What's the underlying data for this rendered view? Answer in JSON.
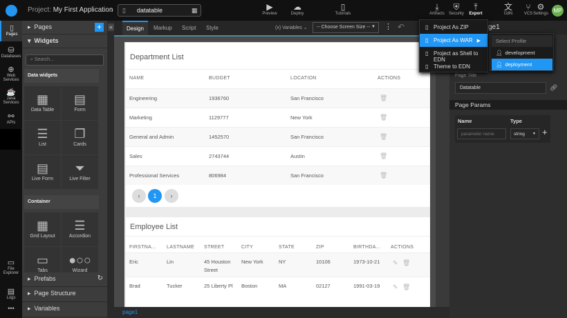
{
  "header": {
    "project_label": "Project:",
    "project_name": "My First Application",
    "page_name": "datatable",
    "tools": [
      {
        "label": "Preview",
        "icon": "play-icon"
      },
      {
        "label": "Deploy",
        "icon": "cloud-upload-icon"
      },
      {
        "label": "Tutorials",
        "icon": "book-icon"
      },
      {
        "label": "Artifacts",
        "icon": "download-icon"
      },
      {
        "label": "Security",
        "icon": "shield-icon"
      },
      {
        "label": "Export",
        "icon": "export-icon"
      },
      {
        "label": "I18N",
        "icon": "translate-icon"
      },
      {
        "label": "VCS",
        "icon": "git-icon"
      },
      {
        "label": "Settings",
        "icon": "gear-icon"
      }
    ],
    "avatar": "MP"
  },
  "rail": {
    "items": [
      "Pages",
      "Databases",
      "Web Services",
      "Java Services",
      "APIs"
    ],
    "bottom": [
      "File Explorer",
      "Logs"
    ],
    "more": "•••"
  },
  "left_panel": {
    "pages": "Pages",
    "widgets": "Widgets",
    "search_placeholder": "Search...",
    "groups": [
      {
        "label": "Data widgets",
        "tiles": [
          "Data Table",
          "Form",
          "List",
          "Cards",
          "Live Form",
          "Live Filter"
        ]
      },
      {
        "label": "Container",
        "tiles": [
          "Grid Layout",
          "Accordion",
          "Tabs",
          "Wizard"
        ]
      }
    ],
    "prefabs": "Prefabs",
    "page_structure": "Page Structure",
    "variables": "Variables"
  },
  "editor": {
    "tabs": [
      "Design",
      "Markup",
      "Script",
      "Style"
    ],
    "variables": "Variables",
    "screen_size": "-- Choose Screen Size --",
    "bottom_tab": "page1"
  },
  "department": {
    "title": "Department List",
    "columns": [
      "NAME",
      "BUDGET",
      "LOCATION",
      "ACTIONS"
    ],
    "rows": [
      [
        "Engineering",
        "1936760",
        "San Francisco"
      ],
      [
        "Marketing",
        "1129777",
        "New York"
      ],
      [
        "General and Admin",
        "1452570",
        "San Francisco"
      ],
      [
        "Sales",
        "2743744",
        "Austin"
      ],
      [
        "Professional Services",
        "806984",
        "San Francisco"
      ]
    ],
    "pagination": {
      "prev": "‹",
      "current": "1",
      "next": "›"
    }
  },
  "employee": {
    "title": "Employee List",
    "columns": [
      "FIRSTNA...",
      "LASTNAME",
      "STREET",
      "CITY",
      "STATE",
      "ZIP",
      "BIRTHDA...",
      "ACTIONS"
    ],
    "rows": [
      [
        "Eric",
        "Lin",
        "45 Houston Street",
        "New York",
        "NY",
        "10106",
        "1973-10-21"
      ],
      [
        "Brad",
        "Tucker",
        "25 Liberty Pl",
        "Boston",
        "MA",
        "02127",
        "1991-03-19"
      ]
    ]
  },
  "right_panel": {
    "title_partial": "ge1",
    "page_title_label": "Page Title",
    "page_title_value": "Datatable",
    "page_params": "Page Params",
    "param_cols": [
      "Name",
      "Type"
    ],
    "param_placeholder": "parameter name",
    "param_type": "string"
  },
  "export_menu": {
    "items": [
      "Project As ZIP",
      "Project As WAR",
      "Project as Shell to EDN",
      "Theme to EDN"
    ],
    "selected": "Project As WAR",
    "submenu": {
      "header": "Select Profile",
      "items": [
        "development",
        "deployment"
      ],
      "selected": "deployment"
    }
  },
  "colors": {
    "accent": "#2196f3",
    "avatar": "#6ab04c"
  }
}
